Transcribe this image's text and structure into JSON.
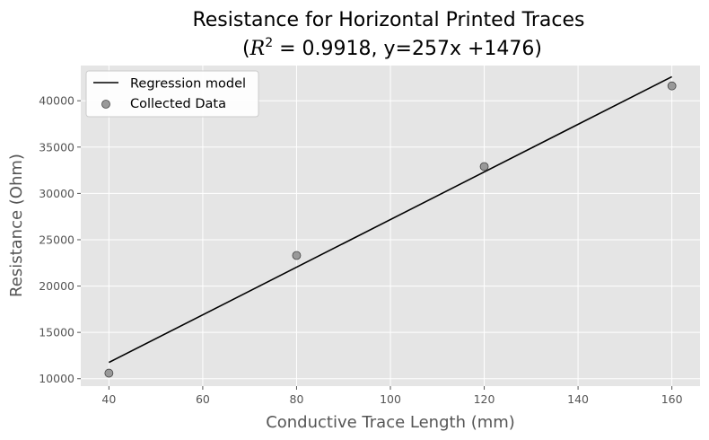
{
  "chart_data": {
    "type": "scatter",
    "title_line1": "Resistance for Horizontal Printed Traces",
    "title_line2_prefix": "(",
    "title_line2_R": "R",
    "title_line2_sup": "2",
    "title_line2_rest": " = 0.9918, y=257x +1476)",
    "xlabel": "Conductive Trace Length (mm)",
    "ylabel": "Resistance (Ohm)",
    "xlim": [
      34,
      166
    ],
    "ylim": [
      9200,
      43800
    ],
    "xticks": [
      40,
      60,
      80,
      100,
      120,
      140,
      160
    ],
    "yticks": [
      10000,
      15000,
      20000,
      25000,
      30000,
      35000,
      40000
    ],
    "grid": true,
    "legend_position": "top-left",
    "series": [
      {
        "name": "Regression model",
        "kind": "line",
        "x": [
          40,
          160
        ],
        "y": [
          11756,
          42596
        ],
        "color": "#000000"
      },
      {
        "name": "Collected Data",
        "kind": "scatter",
        "x": [
          40,
          80,
          120,
          160
        ],
        "y": [
          10600,
          23300,
          32900,
          41600
        ],
        "color": "#999999",
        "edge_color": "#444444"
      }
    ],
    "colors": {
      "background": "#e5e5e5",
      "grid": "#ffffff"
    }
  }
}
